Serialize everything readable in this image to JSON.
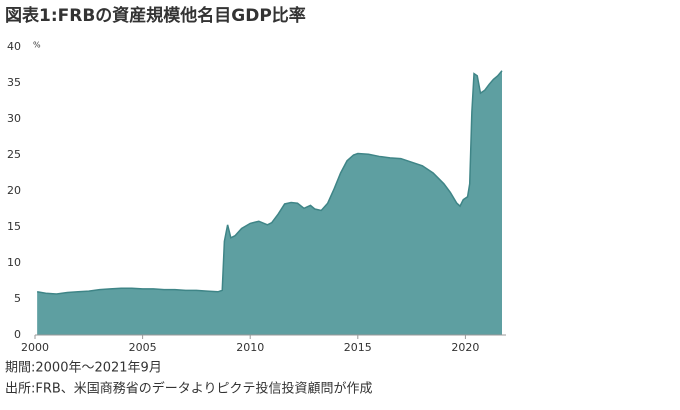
{
  "chart_data": {
    "type": "area",
    "title": "図表1:FRBの資産規模他名目GDP比率",
    "unit": "%",
    "note": "期間:2000年～2021年9月",
    "source": "出所:FRB、米国商務省のデータよりピクテ投信投資顧問が作成",
    "color": "#5e9fa1",
    "line_color": "#3f8587",
    "x": [
      2000.1,
      2000.5,
      2001.0,
      2001.5,
      2002.0,
      2002.5,
      2003.0,
      2003.5,
      2004.0,
      2004.5,
      2005.0,
      2005.5,
      2006.0,
      2006.5,
      2007.0,
      2007.5,
      2008.0,
      2008.5,
      2008.7,
      2008.8,
      2008.95,
      2009.1,
      2009.3,
      2009.6,
      2010.0,
      2010.4,
      2010.8,
      2011.0,
      2011.3,
      2011.6,
      2011.9,
      2012.2,
      2012.5,
      2012.8,
      2013.0,
      2013.3,
      2013.6,
      2013.9,
      2014.2,
      2014.5,
      2014.8,
      2015.0,
      2015.5,
      2016.0,
      2016.5,
      2017.0,
      2017.5,
      2018.0,
      2018.5,
      2019.0,
      2019.3,
      2019.6,
      2019.75,
      2019.9,
      2020.1,
      2020.2,
      2020.3,
      2020.4,
      2020.55,
      2020.7,
      2020.9,
      2021.1,
      2021.3,
      2021.5,
      2021.7
    ],
    "values": [
      6.0,
      5.8,
      5.7,
      5.9,
      6.0,
      6.1,
      6.3,
      6.4,
      6.5,
      6.5,
      6.4,
      6.4,
      6.3,
      6.3,
      6.2,
      6.2,
      6.1,
      6.0,
      6.2,
      13.0,
      15.3,
      13.5,
      13.8,
      14.8,
      15.5,
      15.8,
      15.3,
      15.6,
      16.8,
      18.2,
      18.4,
      18.3,
      17.6,
      18.0,
      17.5,
      17.3,
      18.3,
      20.3,
      22.5,
      24.2,
      25.0,
      25.2,
      25.1,
      24.8,
      24.6,
      24.5,
      24.0,
      23.5,
      22.5,
      21.0,
      19.8,
      18.3,
      17.9,
      18.8,
      19.2,
      21.0,
      31.0,
      36.3,
      36.0,
      33.6,
      34.0,
      34.8,
      35.5,
      36.0,
      36.7
    ],
    "xlim": [
      2000,
      2021.7
    ],
    "ylim": [
      0,
      40
    ],
    "xticks": [
      2000,
      2005,
      2010,
      2015,
      2020
    ],
    "yticks": [
      0,
      5,
      10,
      15,
      20,
      25,
      30,
      35,
      40
    ]
  }
}
